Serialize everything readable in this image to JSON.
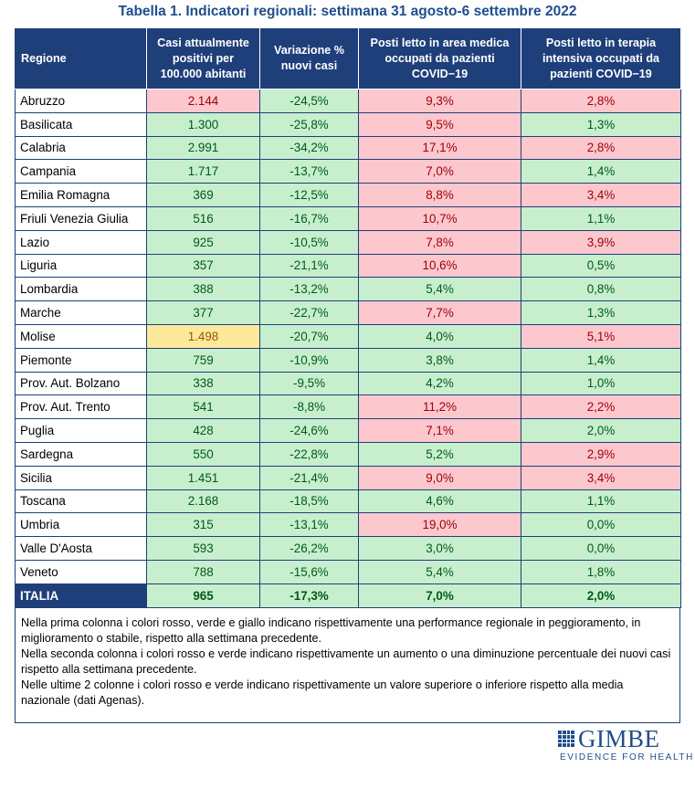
{
  "title": "Tabella 1. Indicatori regionali: settimana 31 agosto-6 settembre 2022",
  "headers": [
    "Regione",
    "Casi attualmente positivi per 100.000 abitanti",
    "Variazione % nuovi casi",
    "Posti letto in area medica occupati da pazienti COVID−19",
    "Posti letto in terapia intensiva occupati da pazienti COVID−19"
  ],
  "colors": {
    "header_bg": "#1f3f7a",
    "green": "#c7efce",
    "red": "#fdc7ce",
    "yellow": "#fde99c"
  },
  "rows": [
    {
      "region": "Abruzzo",
      "casi": "2.144",
      "var": "-24,5%",
      "medica": "9,3%",
      "ti": "2,8%",
      "status": [
        "r",
        "g",
        "r",
        "r"
      ]
    },
    {
      "region": "Basilicata",
      "casi": "1.300",
      "var": "-25,8%",
      "medica": "9,5%",
      "ti": "1,3%",
      "status": [
        "g",
        "g",
        "r",
        "g"
      ]
    },
    {
      "region": "Calabria",
      "casi": "2.991",
      "var": "-34,2%",
      "medica": "17,1%",
      "ti": "2,8%",
      "status": [
        "g",
        "g",
        "r",
        "r"
      ]
    },
    {
      "region": "Campania",
      "casi": "1.717",
      "var": "-13,7%",
      "medica": "7,0%",
      "ti": "1,4%",
      "status": [
        "g",
        "g",
        "r",
        "g"
      ]
    },
    {
      "region": "Emilia Romagna",
      "casi": "369",
      "var": "-12,5%",
      "medica": "8,8%",
      "ti": "3,4%",
      "status": [
        "g",
        "g",
        "r",
        "r"
      ]
    },
    {
      "region": "Friuli Venezia Giulia",
      "casi": "516",
      "var": "-16,7%",
      "medica": "10,7%",
      "ti": "1,1%",
      "status": [
        "g",
        "g",
        "r",
        "g"
      ]
    },
    {
      "region": "Lazio",
      "casi": "925",
      "var": "-10,5%",
      "medica": "7,8%",
      "ti": "3,9%",
      "status": [
        "g",
        "g",
        "r",
        "r"
      ]
    },
    {
      "region": "Liguria",
      "casi": "357",
      "var": "-21,1%",
      "medica": "10,6%",
      "ti": "0,5%",
      "status": [
        "g",
        "g",
        "r",
        "g"
      ]
    },
    {
      "region": "Lombardia",
      "casi": "388",
      "var": "-13,2%",
      "medica": "5,4%",
      "ti": "0,8%",
      "status": [
        "g",
        "g",
        "g",
        "g"
      ]
    },
    {
      "region": "Marche",
      "casi": "377",
      "var": "-22,7%",
      "medica": "7,7%",
      "ti": "1,3%",
      "status": [
        "g",
        "g",
        "r",
        "g"
      ]
    },
    {
      "region": "Molise",
      "casi": "1.498",
      "var": "-20,7%",
      "medica": "4,0%",
      "ti": "5,1%",
      "status": [
        "y",
        "g",
        "g",
        "r"
      ]
    },
    {
      "region": "Piemonte",
      "casi": "759",
      "var": "-10,9%",
      "medica": "3,8%",
      "ti": "1,4%",
      "status": [
        "g",
        "g",
        "g",
        "g"
      ]
    },
    {
      "region": "Prov. Aut. Bolzano",
      "casi": "338",
      "var": "-9,5%",
      "medica": "4,2%",
      "ti": "1,0%",
      "status": [
        "g",
        "g",
        "g",
        "g"
      ]
    },
    {
      "region": "Prov. Aut. Trento",
      "casi": "541",
      "var": "-8,8%",
      "medica": "11,2%",
      "ti": "2,2%",
      "status": [
        "g",
        "g",
        "r",
        "r"
      ]
    },
    {
      "region": "Puglia",
      "casi": "428",
      "var": "-24,6%",
      "medica": "7,1%",
      "ti": "2,0%",
      "status": [
        "g",
        "g",
        "r",
        "g"
      ]
    },
    {
      "region": "Sardegna",
      "casi": "550",
      "var": "-22,8%",
      "medica": "5,2%",
      "ti": "2,9%",
      "status": [
        "g",
        "g",
        "g",
        "r"
      ]
    },
    {
      "region": "Sicilia",
      "casi": "1.451",
      "var": "-21,4%",
      "medica": "9,0%",
      "ti": "3,4%",
      "status": [
        "g",
        "g",
        "r",
        "r"
      ]
    },
    {
      "region": "Toscana",
      "casi": "2.168",
      "var": "-18,5%",
      "medica": "4,6%",
      "ti": "1,1%",
      "status": [
        "g",
        "g",
        "g",
        "g"
      ]
    },
    {
      "region": "Umbria",
      "casi": "315",
      "var": "-13,1%",
      "medica": "19,0%",
      "ti": "0,0%",
      "status": [
        "g",
        "g",
        "r",
        "g"
      ]
    },
    {
      "region": "Valle D'Aosta",
      "casi": "593",
      "var": "-26,2%",
      "medica": "3,0%",
      "ti": "0,0%",
      "status": [
        "g",
        "g",
        "g",
        "g"
      ]
    },
    {
      "region": "Veneto",
      "casi": "788",
      "var": "-15,6%",
      "medica": "5,4%",
      "ti": "1,8%",
      "status": [
        "g",
        "g",
        "g",
        "g"
      ]
    }
  ],
  "total": {
    "region": "ITALIA",
    "casi": "965",
    "var": "-17,3%",
    "medica": "7,0%",
    "ti": "2,0%"
  },
  "notes": [
    "Nella prima colonna i colori rosso, verde e giallo indicano rispettivamente una performance regionale in peggioramento, in miglioramento o stabile, rispetto alla settimana precedente.",
    "Nella seconda colonna i colori rosso e verde indicano rispettivamente un aumento o una diminuzione percentuale dei nuovi casi rispetto alla settimana precedente.",
    "Nelle ultime 2 colonne i colori rosso e verde indicano rispettivamente un valore superiore o inferiore rispetto alla media nazionale (dati Agenas)."
  ],
  "logo": {
    "name": "GIMBE",
    "tagline": "EVIDENCE FOR HEALTH",
    "icon": "grid-logo-icon"
  }
}
